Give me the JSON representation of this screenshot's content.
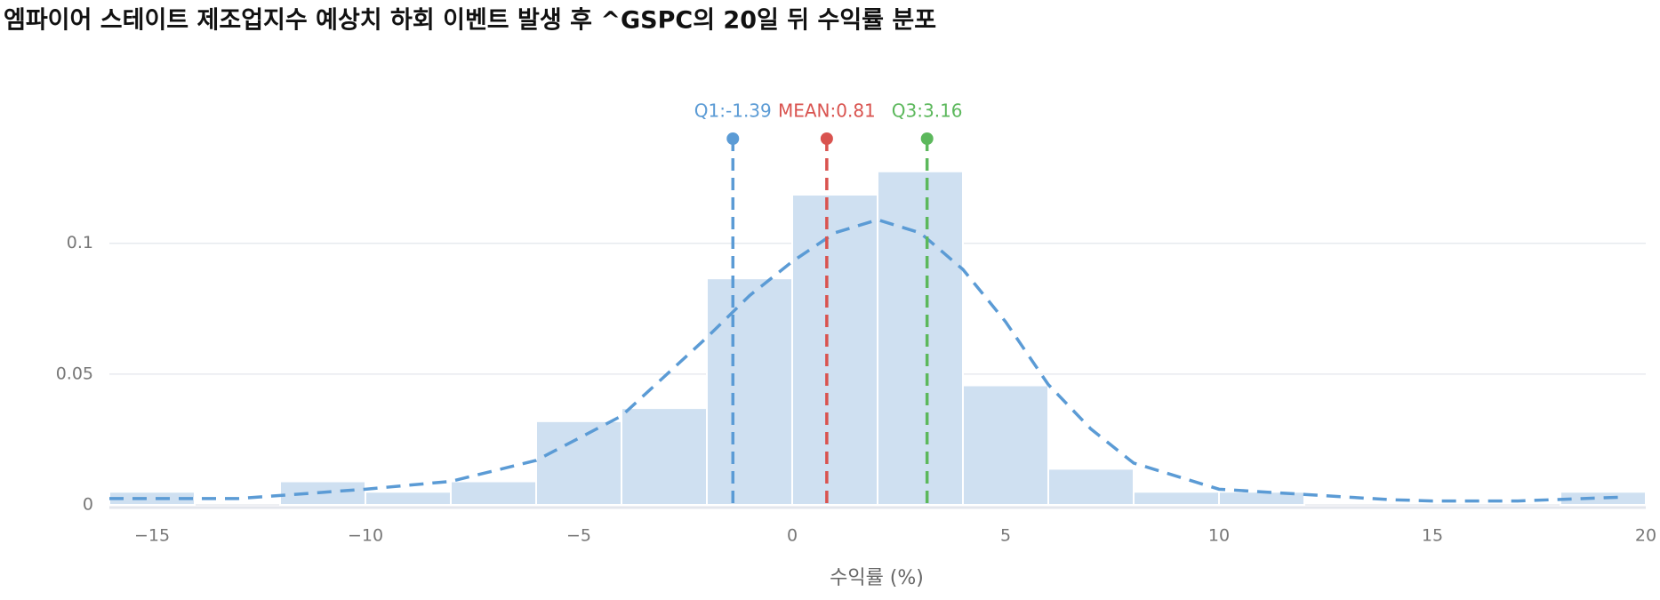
{
  "chart_data": {
    "type": "histogram",
    "title": "엠파이어 스테이트 제조업지수 예상치 하회 이벤트 발생 후 ^GSPC의 20일 뒤 수익률 분포",
    "x_label": "수익률 (%)",
    "bins": [
      -16,
      -14,
      -12,
      -10,
      -8,
      -6,
      -4,
      -2,
      0,
      2,
      4,
      6,
      8,
      10,
      12,
      14,
      16,
      18,
      20
    ],
    "values": [
      0.005,
      0,
      0.009,
      0.005,
      0.009,
      0.032,
      0.037,
      0.0866,
      0.1186,
      0.1275,
      0.0457,
      0.0138,
      0.005,
      0.005,
      0,
      0,
      0,
      0.005
    ],
    "color": "#cfe0f1",
    "kde": {
      "color": "#5b9bd5",
      "x": [
        -16,
        -13,
        -10,
        -8,
        -6,
        -4,
        -2,
        -1,
        0,
        1,
        2,
        3,
        4,
        5,
        6,
        7,
        8,
        10,
        12,
        14,
        15,
        17,
        19.5
      ],
      "values": [
        0.0024,
        0.0024,
        0.006,
        0.009,
        0.017,
        0.034,
        0.064,
        0.08,
        0.093,
        0.104,
        0.109,
        0.104,
        0.09,
        0.07,
        0.046,
        0.029,
        0.016,
        0.006,
        0.004,
        0.002,
        0.0015,
        0.0015,
        0.003
      ]
    },
    "markers": [
      {
        "label": "Q1:-1.39",
        "value": -1.39,
        "color": "#5b9bd5"
      },
      {
        "label": "MEAN:0.81",
        "value": 0.81,
        "color": "#d9534f"
      },
      {
        "label": "Q3:3.16",
        "value": 3.16,
        "color": "#5cb85c"
      }
    ],
    "xlim": [
      -16,
      20
    ],
    "ylim": [
      0,
      0.14
    ],
    "xticks": [
      {
        "value": -15,
        "label": "−15"
      },
      {
        "value": -10,
        "label": "−10"
      },
      {
        "value": -5,
        "label": "−5"
      },
      0,
      5,
      10,
      15,
      20
    ],
    "yticks": [
      0,
      0.05,
      0.1
    ],
    "grid": true
  }
}
